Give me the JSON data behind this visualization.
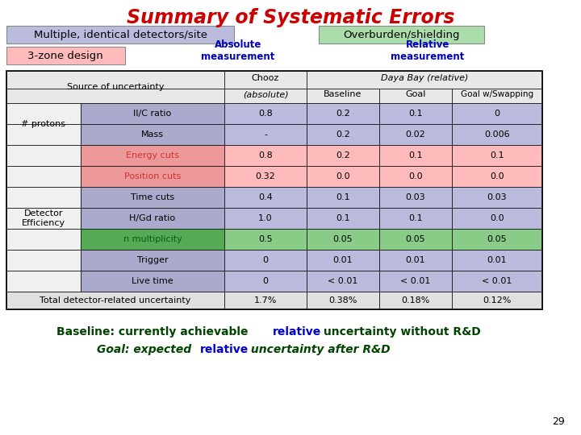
{
  "title": "Summary of Systematic Errors",
  "title_color": "#cc0000",
  "title_fontsize": 17,
  "badge_multiple": "Multiple, identical detectors/site",
  "badge_multiple_bg": "#bbbbdd",
  "badge_overburden": "Overburden/shielding",
  "badge_overburden_bg": "#aaddaa",
  "badge_3zone": "3-zone design",
  "badge_3zone_bg": "#ffbbbb",
  "label_absolute": "Absolute\nmeasurement",
  "label_relative": "Relative\nmeasurement",
  "label_color": "#0000bb",
  "rows": [
    {
      "cat": "# protons",
      "sub": "II/C ratio",
      "vals": [
        "0.8",
        "0.2",
        "0.1",
        "0"
      ],
      "sub_color": "#aaaacc",
      "row_color": "#bbbbdd",
      "sub_text_color": "#000000"
    },
    {
      "cat": "",
      "sub": "Mass",
      "vals": [
        "-",
        "0.2",
        "0.02",
        "0.006"
      ],
      "sub_color": "#aaaacc",
      "row_color": "#bbbbdd",
      "sub_text_color": "#000000"
    },
    {
      "cat": "Detector\nEfficiency",
      "sub": "Energy cuts",
      "vals": [
        "0.8",
        "0.2",
        "0.1",
        "0.1"
      ],
      "sub_color": "#ee9999",
      "row_color": "#ffbbbb",
      "sub_text_color": "#cc3333"
    },
    {
      "cat": "",
      "sub": "Position cuts",
      "vals": [
        "0.32",
        "0.0",
        "0.0",
        "0.0"
      ],
      "sub_color": "#ee9999",
      "row_color": "#ffbbbb",
      "sub_text_color": "#cc3333"
    },
    {
      "cat": "",
      "sub": "Time cuts",
      "vals": [
        "0.4",
        "0.1",
        "0.03",
        "0.03"
      ],
      "sub_color": "#aaaacc",
      "row_color": "#bbbbdd",
      "sub_text_color": "#000000"
    },
    {
      "cat": "",
      "sub": "H/Gd ratio",
      "vals": [
        "1.0",
        "0.1",
        "0.1",
        "0.0"
      ],
      "sub_color": "#aaaacc",
      "row_color": "#bbbbdd",
      "sub_text_color": "#000000"
    },
    {
      "cat": "",
      "sub": "n multiplicity",
      "vals": [
        "0.5",
        "0.05",
        "0.05",
        "0.05"
      ],
      "sub_color": "#55aa55",
      "row_color": "#88cc88",
      "sub_text_color": "#115511"
    },
    {
      "cat": "",
      "sub": "Trigger",
      "vals": [
        "0",
        "0.01",
        "0.01",
        "0.01"
      ],
      "sub_color": "#aaaacc",
      "row_color": "#bbbbdd",
      "sub_text_color": "#000000"
    },
    {
      "cat": "",
      "sub": "Live time",
      "vals": [
        "0",
        "< 0.01",
        "< 0.01",
        "< 0.01"
      ],
      "sub_color": "#aaaacc",
      "row_color": "#bbbbdd",
      "sub_text_color": "#000000"
    }
  ],
  "total_row": [
    "Total detector-related uncertainty",
    "1.7%",
    "0.38%",
    "0.18%",
    "0.12%"
  ],
  "page_num": "29",
  "bg_color": "#ffffff",
  "footnote_color": "#004400",
  "footnote_bold_color": "#0000cc"
}
